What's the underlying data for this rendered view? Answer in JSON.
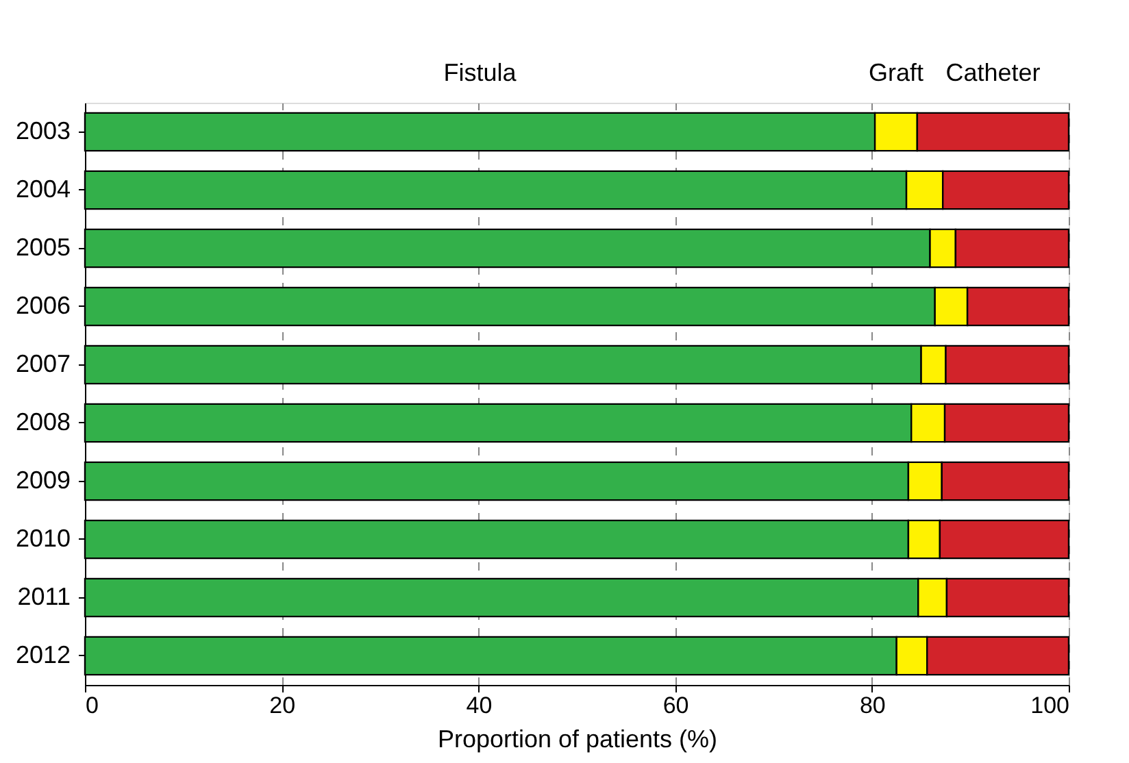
{
  "chart_data": {
    "type": "bar",
    "orientation": "horizontal",
    "stacked": true,
    "categories": [
      "2003",
      "2004",
      "2005",
      "2006",
      "2007",
      "2008",
      "2009",
      "2010",
      "2011",
      "2012"
    ],
    "series": [
      {
        "name": "Fistula",
        "color": "#33b04a",
        "values": [
          80.3,
          83.5,
          85.9,
          86.4,
          85.0,
          84.0,
          83.7,
          83.7,
          84.7,
          82.5
        ]
      },
      {
        "name": "Graft",
        "color": "#fff200",
        "values": [
          4.3,
          3.7,
          2.6,
          3.3,
          2.5,
          3.4,
          3.4,
          3.2,
          2.9,
          3.1
        ]
      },
      {
        "name": "Catheter",
        "color": "#d2232a",
        "values": [
          15.4,
          12.8,
          11.5,
          10.3,
          12.5,
          12.6,
          12.9,
          13.1,
          12.4,
          14.4
        ]
      }
    ],
    "xlabel": "Proportion of patients (%)",
    "xlim": [
      0,
      100
    ],
    "xticks": [
      0,
      20,
      40,
      60,
      80,
      100
    ],
    "grid": "x"
  }
}
